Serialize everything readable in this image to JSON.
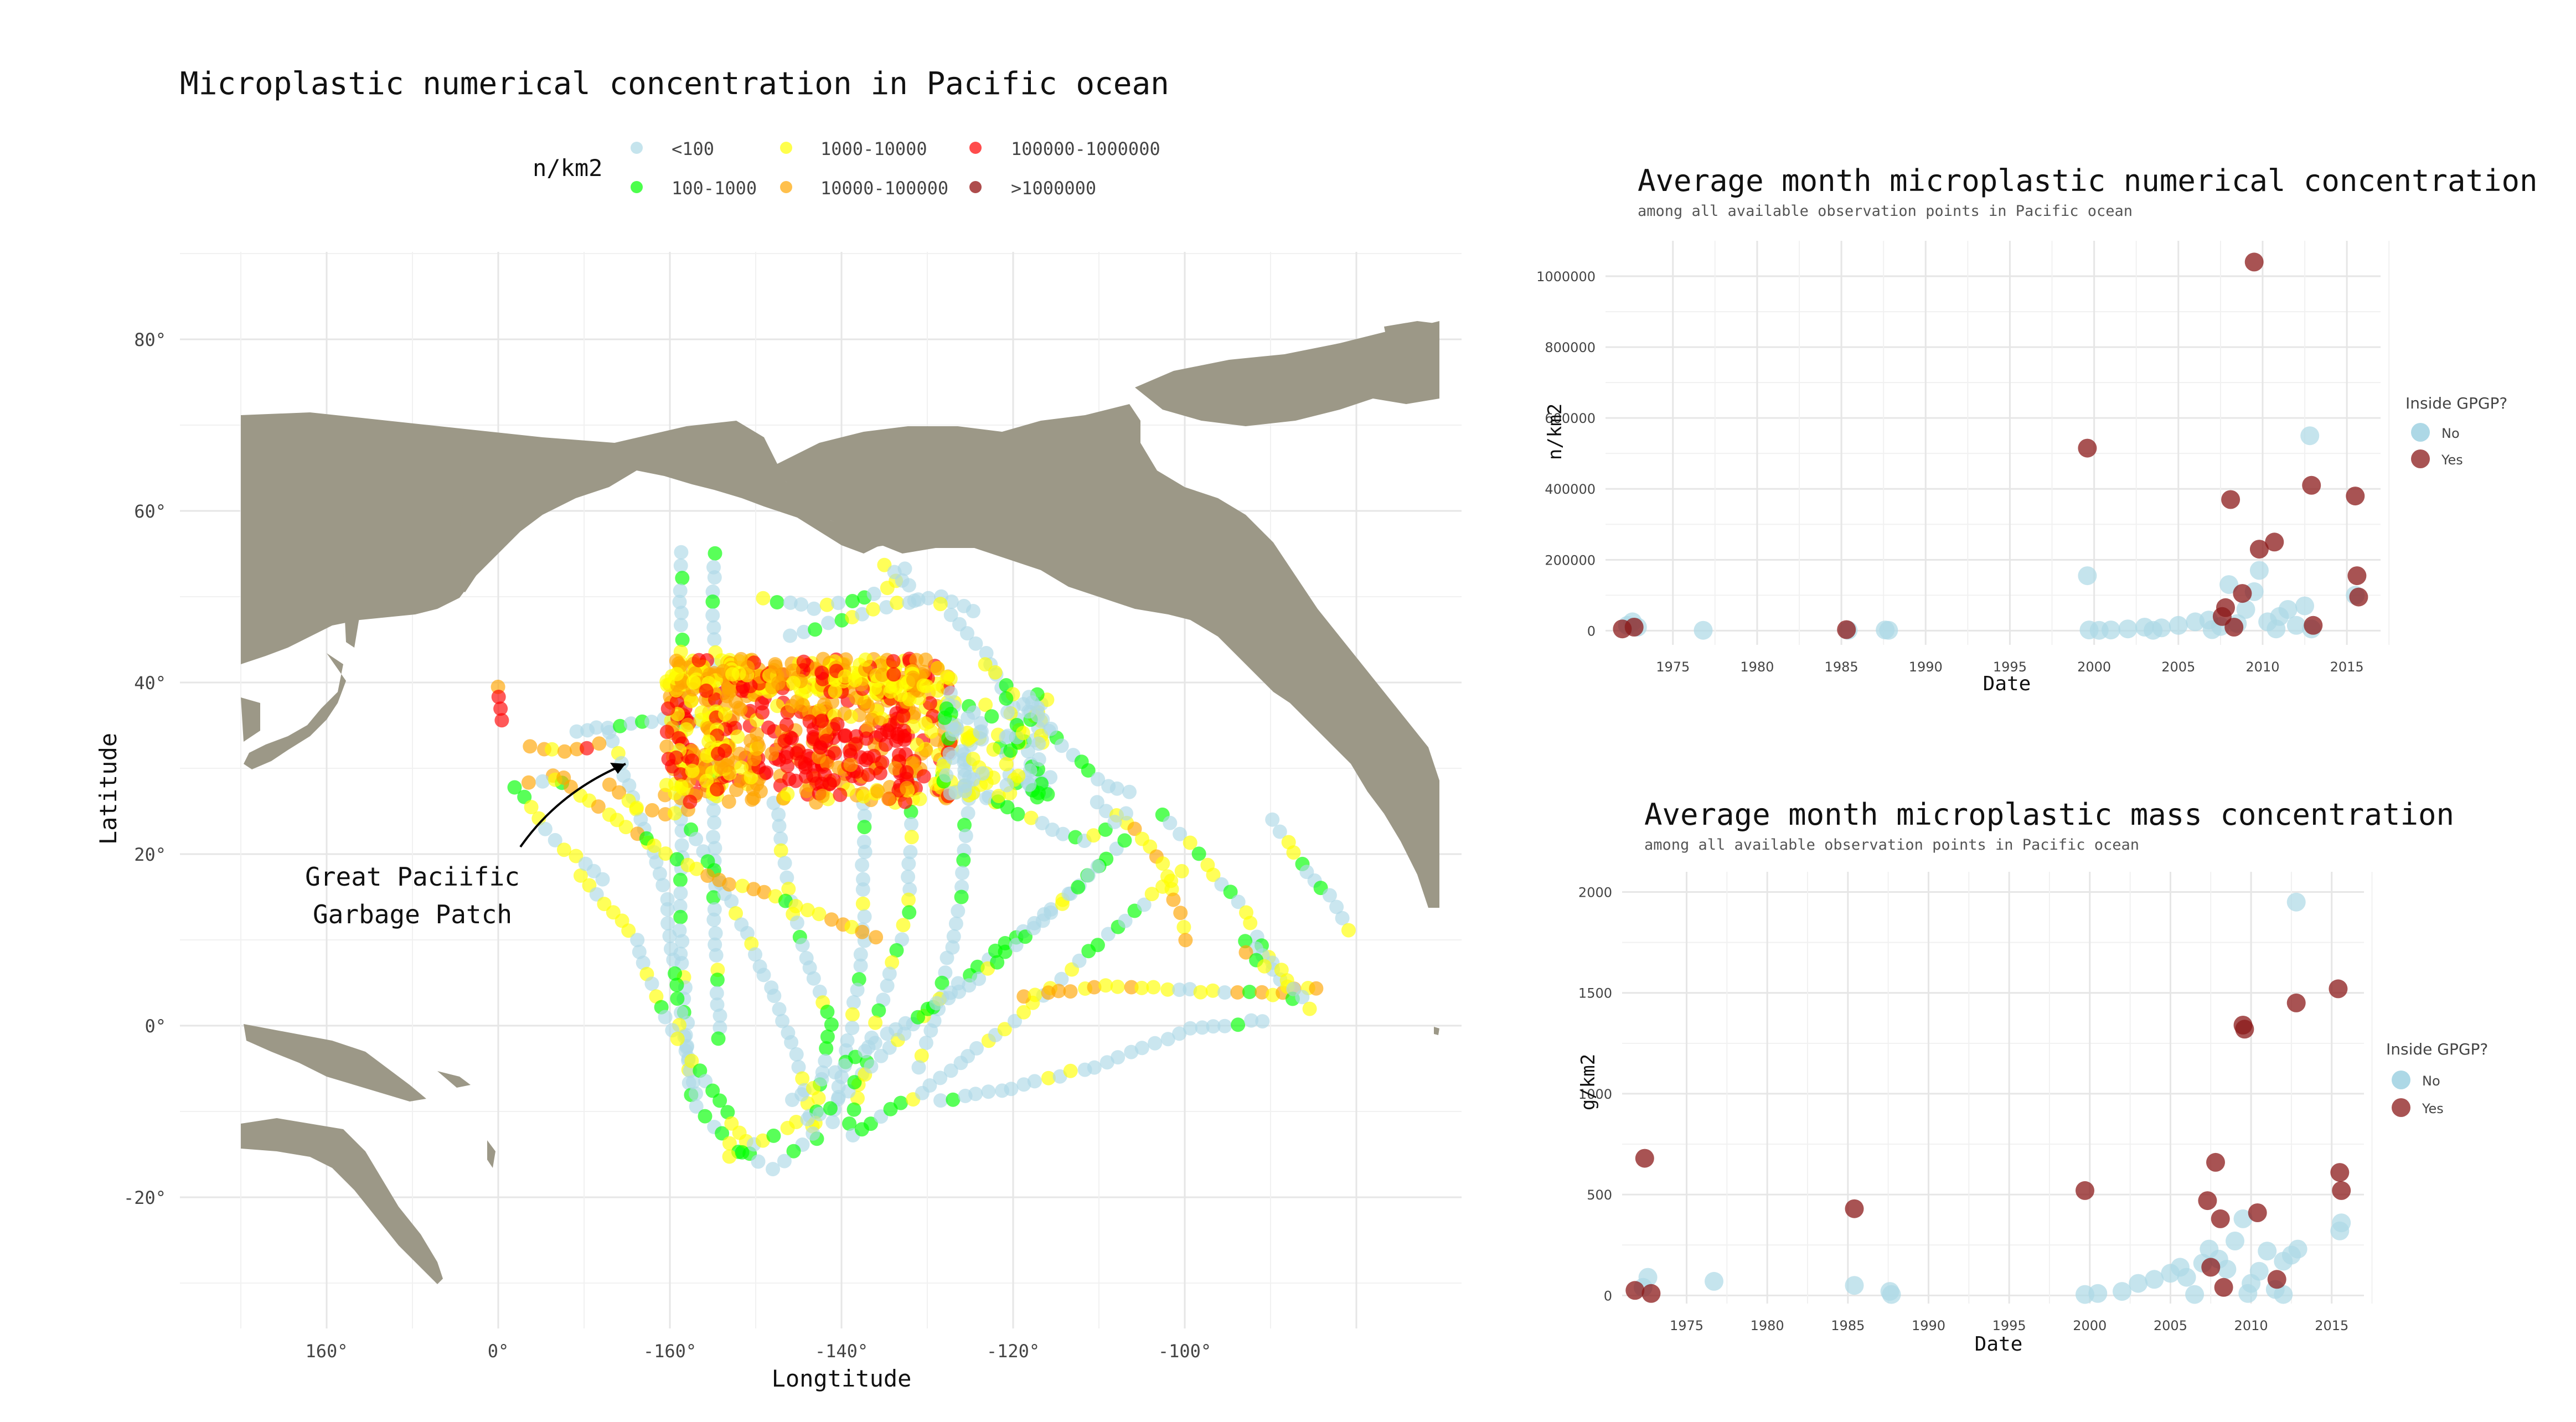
{
  "colors": {
    "lt100": "#add8e6",
    "c100_1000": "#00ff00",
    "c1000_10000": "#ffff00",
    "c10000_100000": "#ffa500",
    "c100000_1000000": "#ff0000",
    "gt1000000": "#8b0000",
    "gpgp_no": "#add8e6",
    "gpgp_yes": "#8b1a1a",
    "land": "#9c9887"
  },
  "chart_data": [
    {
      "type": "scatter",
      "title": "Microplastic numerical concentration in Pacific ocean",
      "xlabel": "Longtitude",
      "ylabel": "Latitude",
      "x_ticks": [
        "160°",
        "0°",
        "-160°",
        "-140°",
        "-120°",
        "-100°"
      ],
      "y_ticks": [
        "80°",
        "60°",
        "40°",
        "20°",
        "0°",
        "-20°"
      ],
      "legend": {
        "title": "n/km2",
        "position": "top",
        "items": [
          {
            "label": "<100",
            "color_key": "lt100"
          },
          {
            "label": "100-1000",
            "color_key": "c100_1000"
          },
          {
            "label": "1000-10000",
            "color_key": "c1000_10000"
          },
          {
            "label": "10000-100000",
            "color_key": "c10000_100000"
          },
          {
            "label": "100000-1000000",
            "color_key": "c100000_1000000"
          },
          {
            "label": ">1000000",
            "color_key": "gt1000000"
          }
        ]
      },
      "annotation": {
        "line1": "Great Paciific",
        "line2": "Garbage Patch"
      },
      "grid": true
    },
    {
      "type": "scatter",
      "title": "Average month microplastic numerical concentration",
      "subtitle": "among all available observation points in Pacific ocean",
      "xlabel": "Date",
      "ylabel": "n/km2",
      "xlim": [
        1971,
        2017
      ],
      "ylim": [
        -40000,
        1100000
      ],
      "x_ticks": [
        1975,
        1980,
        1985,
        1990,
        1995,
        2000,
        2005,
        2010,
        2015
      ],
      "y_ticks": [
        0,
        200000,
        400000,
        600000,
        800000,
        1000000
      ],
      "legend": {
        "title": "Inside GPGP?",
        "position": "right",
        "items": [
          "No",
          "Yes"
        ]
      },
      "grid": true,
      "series": [
        {
          "name": "No",
          "points": [
            [
              1972.3,
              15000
            ],
            [
              1972.6,
              25000
            ],
            [
              1972.9,
              10000
            ],
            [
              1976.8,
              1000
            ],
            [
              1985.4,
              1000
            ],
            [
              1987.6,
              2000
            ],
            [
              1987.8,
              1000
            ],
            [
              1999.6,
              155000
            ],
            [
              1999.7,
              2000
            ],
            [
              2000.3,
              1000
            ],
            [
              2001,
              2000
            ],
            [
              2002,
              5000
            ],
            [
              2003,
              10000
            ],
            [
              2004,
              8000
            ],
            [
              2005,
              15000
            ],
            [
              2006,
              25000
            ],
            [
              2006.8,
              30000
            ],
            [
              2007.5,
              12000
            ],
            [
              2008,
              130000
            ],
            [
              2008.5,
              20000
            ],
            [
              2009,
              60000
            ],
            [
              2009.5,
              110000
            ],
            [
              2009.8,
              170000
            ],
            [
              2010.3,
              25000
            ],
            [
              2011,
              40000
            ],
            [
              2011.5,
              60000
            ],
            [
              2012,
              15000
            ],
            [
              2012.5,
              70000
            ],
            [
              2012.8,
              550000
            ],
            [
              2012.9,
              5000
            ],
            [
              2015.5,
              100000
            ],
            [
              2003.5,
              1000
            ],
            [
              2007,
              3000
            ],
            [
              2010.8,
              5000
            ]
          ]
        },
        {
          "name": "Yes",
          "points": [
            [
              1972,
              5000
            ],
            [
              1972.7,
              10000
            ],
            [
              1985.3,
              3000
            ],
            [
              1999.6,
              515000
            ],
            [
              2007.6,
              40000
            ],
            [
              2007.8,
              65000
            ],
            [
              2008.1,
              370000
            ],
            [
              2008.8,
              105000
            ],
            [
              2009.5,
              1040000
            ],
            [
              2009.8,
              230000
            ],
            [
              2010.7,
              250000
            ],
            [
              2012.9,
              410000
            ],
            [
              2013,
              15000
            ],
            [
              2015.5,
              380000
            ],
            [
              2015.6,
              155000
            ],
            [
              2015.7,
              95000
            ],
            [
              2008.3,
              10000
            ]
          ]
        }
      ]
    },
    {
      "type": "scatter",
      "title": "Average month microplastic mass concentration",
      "subtitle": "among all available observation points in Pacific ocean",
      "xlabel": "Date",
      "ylabel": "g/km2",
      "xlim": [
        1971,
        2017
      ],
      "ylim": [
        -40,
        2100
      ],
      "x_ticks": [
        1975,
        1980,
        1985,
        1990,
        1995,
        2000,
        2005,
        2010,
        2015
      ],
      "y_ticks": [
        0,
        500,
        1000,
        1500,
        2000
      ],
      "legend": {
        "title": "Inside GPGP?",
        "position": "right",
        "items": [
          "No",
          "Yes"
        ]
      },
      "grid": true,
      "series": [
        {
          "name": "No",
          "points": [
            [
              1972.3,
              40
            ],
            [
              1972.6,
              90
            ],
            [
              1976.7,
              70
            ],
            [
              1985.4,
              50
            ],
            [
              1987.6,
              20
            ],
            [
              1987.7,
              5
            ],
            [
              1999.7,
              5
            ],
            [
              2000.5,
              10
            ],
            [
              2002,
              20
            ],
            [
              2003,
              60
            ],
            [
              2004,
              80
            ],
            [
              2005,
              110
            ],
            [
              2005.6,
              140
            ],
            [
              2006,
              90
            ],
            [
              2007,
              160
            ],
            [
              2007.4,
              230
            ],
            [
              2008,
              180
            ],
            [
              2008.5,
              130
            ],
            [
              2009,
              270
            ],
            [
              2009.5,
              380
            ],
            [
              2010,
              60
            ],
            [
              2010.5,
              120
            ],
            [
              2011,
              220
            ],
            [
              2011.5,
              30
            ],
            [
              2012,
              170
            ],
            [
              2012.5,
              200
            ],
            [
              2012.8,
              1950
            ],
            [
              2012.9,
              230
            ],
            [
              2015.5,
              320
            ],
            [
              2015.6,
              360
            ],
            [
              2006.5,
              5
            ],
            [
              2009.8,
              10
            ],
            [
              2012,
              5
            ]
          ]
        },
        {
          "name": "Yes",
          "points": [
            [
              1971.8,
              25
            ],
            [
              1972.4,
              680
            ],
            [
              1972.8,
              10
            ],
            [
              1985.4,
              430
            ],
            [
              1999.7,
              520
            ],
            [
              2007.3,
              470
            ],
            [
              2007.5,
              140
            ],
            [
              2007.8,
              660
            ],
            [
              2008.1,
              380
            ],
            [
              2008.3,
              40
            ],
            [
              2009.5,
              1340
            ],
            [
              2009.6,
              1320
            ],
            [
              2010.4,
              410
            ],
            [
              2011.6,
              80
            ],
            [
              2012.8,
              1450
            ],
            [
              2015.4,
              1520
            ],
            [
              2015.5,
              610
            ],
            [
              2015.6,
              520
            ]
          ]
        }
      ]
    }
  ]
}
